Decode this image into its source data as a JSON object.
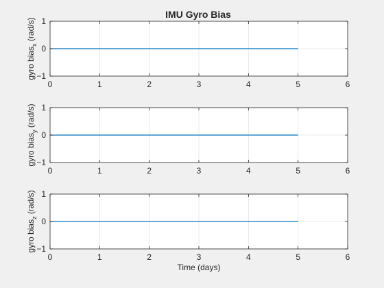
{
  "title": "IMU Gyro Bias",
  "chart_data": [
    {
      "type": "line",
      "ylabel_base": "gyro bias",
      "ylabel_sub": "x",
      "ylabel_unit": "(rad/s)",
      "xlabel": "",
      "xlim": [
        0,
        6
      ],
      "ylim": [
        -1,
        1
      ],
      "xticks": [
        0,
        1,
        2,
        3,
        4,
        5,
        6
      ],
      "yticks": [
        -1,
        0,
        1
      ],
      "grid": true,
      "series": [
        {
          "color": "#0072bd",
          "x": [
            0,
            5
          ],
          "y": [
            0,
            0
          ]
        }
      ]
    },
    {
      "type": "line",
      "ylabel_base": "gyro bias",
      "ylabel_sub": "y",
      "ylabel_unit": "(rad/s)",
      "xlabel": "",
      "xlim": [
        0,
        6
      ],
      "ylim": [
        -1,
        1
      ],
      "xticks": [
        0,
        1,
        2,
        3,
        4,
        5,
        6
      ],
      "yticks": [
        -1,
        0,
        1
      ],
      "grid": true,
      "series": [
        {
          "color": "#0072bd",
          "x": [
            0,
            5
          ],
          "y": [
            0,
            0
          ]
        }
      ]
    },
    {
      "type": "line",
      "ylabel_base": "gyro bias",
      "ylabel_sub": "z",
      "ylabel_unit": "(rad/s)",
      "xlabel": "Time (days)",
      "xlim": [
        0,
        6
      ],
      "ylim": [
        -1,
        1
      ],
      "xticks": [
        0,
        1,
        2,
        3,
        4,
        5,
        6
      ],
      "yticks": [
        -1,
        0,
        1
      ],
      "grid": true,
      "series": [
        {
          "color": "#0072bd",
          "x": [
            0,
            5
          ],
          "y": [
            0,
            0
          ]
        }
      ]
    }
  ]
}
